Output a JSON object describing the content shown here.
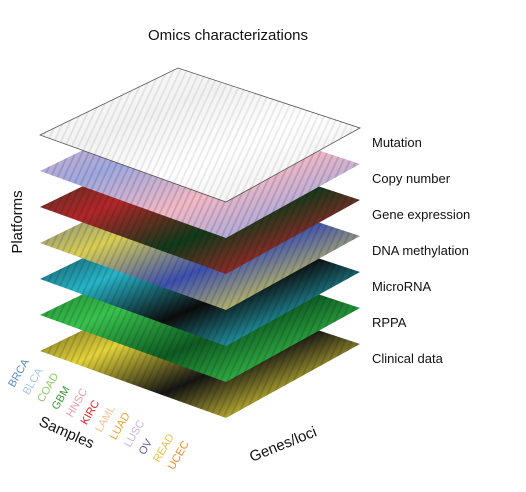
{
  "title": "Omics characterizations",
  "axes": {
    "platforms": "Platforms",
    "samples": "Samples",
    "genes": "Genes/loci"
  },
  "layers": [
    {
      "label": "Mutation",
      "colors": [
        "#ffffff",
        "#f2f2f2"
      ]
    },
    {
      "label": "Copy number",
      "colors": [
        "#f3b9c6",
        "#9fa8e0"
      ]
    },
    {
      "label": "Gene expression",
      "colors": [
        "#0f3a1a",
        "#b3262a"
      ]
    },
    {
      "label": "DNA methylation",
      "colors": [
        "#3c4fb0",
        "#d8cf55"
      ]
    },
    {
      "label": "MicroRNA",
      "colors": [
        "#0b0b0b",
        "#27b5c9"
      ]
    },
    {
      "label": "RPPA",
      "colors": [
        "#0e5a22",
        "#39c24d"
      ]
    },
    {
      "label": "Clinical data",
      "colors": [
        "#141414",
        "#e3d33a"
      ]
    }
  ],
  "cancer_types": [
    {
      "label": "BRCA",
      "color": "#5b8fc7"
    },
    {
      "label": "BLCA",
      "color": "#a9c6e8"
    },
    {
      "label": "COAD",
      "color": "#8fc86a"
    },
    {
      "label": "GBM",
      "color": "#3a9a3a"
    },
    {
      "label": "HNSC",
      "color": "#f19aa5"
    },
    {
      "label": "KIRC",
      "color": "#d9262b"
    },
    {
      "label": "LAML",
      "color": "#f6c28f"
    },
    {
      "label": "LUAD",
      "color": "#f0a030"
    },
    {
      "label": "LUSC",
      "color": "#c6b7dc"
    },
    {
      "label": "OV",
      "color": "#6f4d9c"
    },
    {
      "label": "READ",
      "color": "#e9c24a"
    },
    {
      "label": "UCEC",
      "color": "#f08a2a"
    }
  ]
}
